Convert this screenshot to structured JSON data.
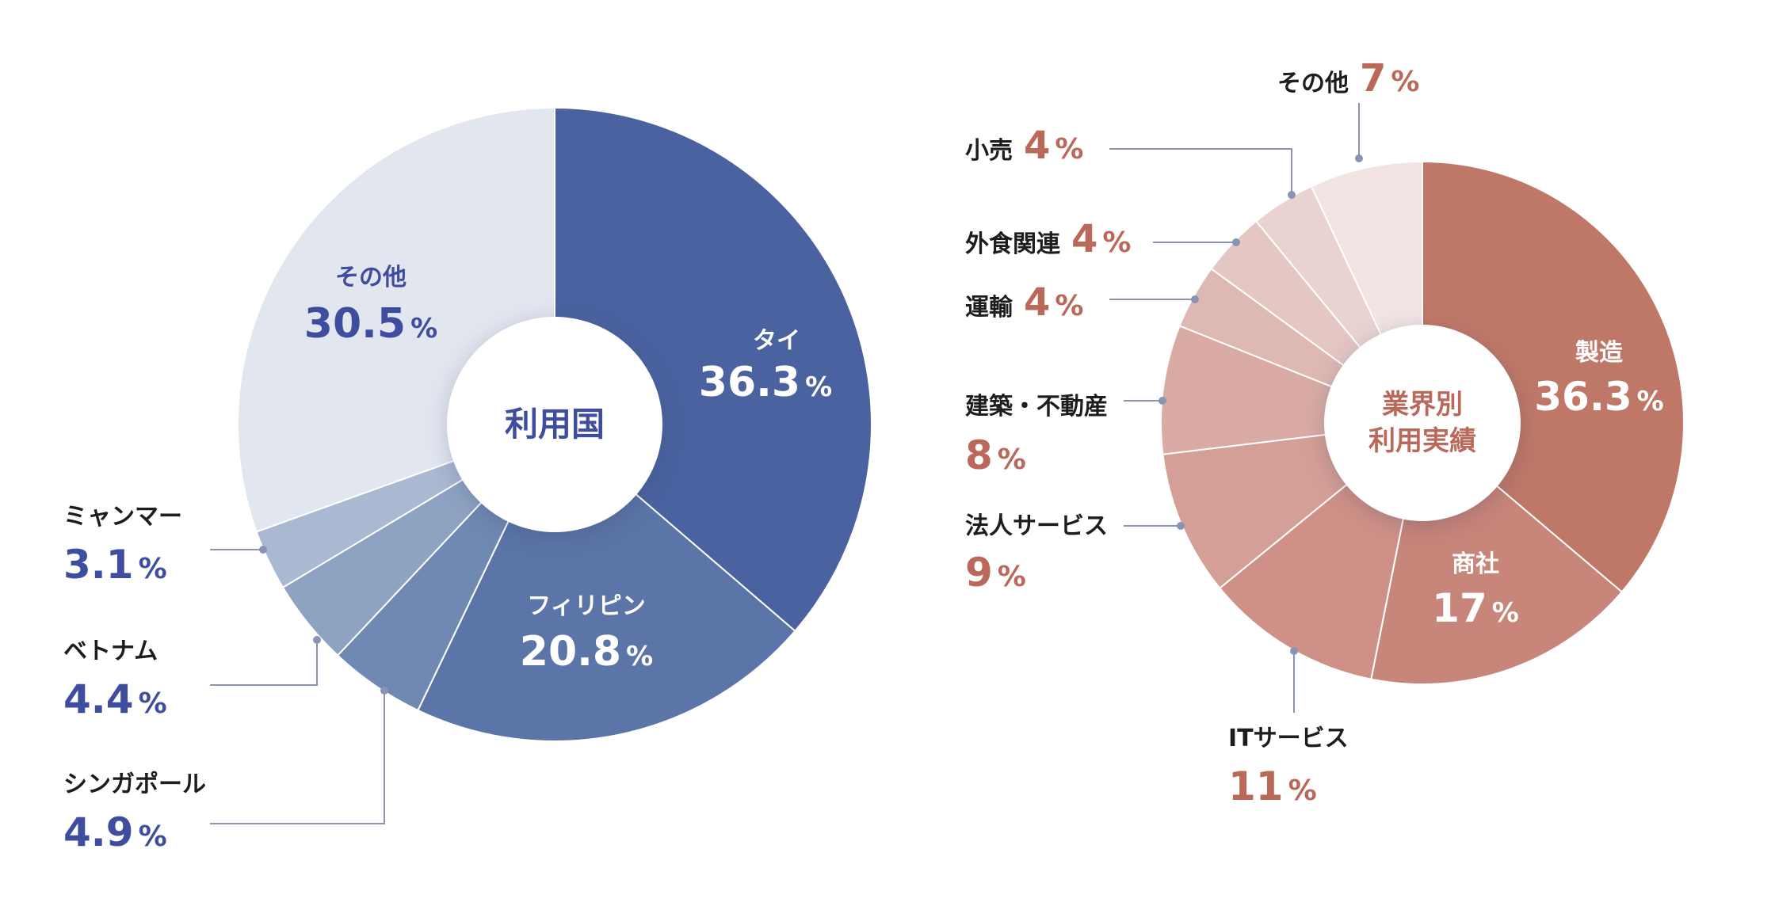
{
  "colors": {
    "blue_text": "#3e4d9e",
    "terracotta_text": "#b9685a",
    "black_text": "#1d1d1d",
    "leader_line_blue": "#8b93b3",
    "leader_line_red": "#8b93b3"
  },
  "chart_data": [
    {
      "type": "pie",
      "title": "利用国",
      "unit": "%",
      "slices": [
        {
          "label": "タイ",
          "value": 36.3,
          "value_text": "36.3",
          "color": "#4a63a0"
        },
        {
          "label": "フィリピン",
          "value": 20.8,
          "value_text": "20.8",
          "color": "#5b75a8"
        },
        {
          "label": "シンガポール",
          "value": 4.9,
          "value_text": "4.9",
          "color": "#7089b3"
        },
        {
          "label": "ベトナム",
          "value": 4.4,
          "value_text": "4.4",
          "color": "#8ea3c2"
        },
        {
          "label": "ミャンマー",
          "value": 3.1,
          "value_text": "3.1",
          "color": "#a9b9d1"
        },
        {
          "label": "その他",
          "value": 30.5,
          "value_text": "30.5",
          "color": "#e2e6ef"
        }
      ]
    },
    {
      "type": "pie",
      "title_lines": [
        "業界別",
        "利用実績"
      ],
      "unit": "%",
      "slices": [
        {
          "label": "製造",
          "value": 36.3,
          "value_text": "36.3",
          "color": "#bf7868"
        },
        {
          "label": "商社",
          "value": 17,
          "value_text": "17",
          "color": "#c8857a"
        },
        {
          "label": "ITサービス",
          "value": 11,
          "value_text": "11",
          "color": "#cf9187"
        },
        {
          "label": "法人サービス",
          "value": 9,
          "value_text": "9",
          "color": "#d49f96"
        },
        {
          "label": "建築・不動産",
          "value": 8,
          "value_text": "8",
          "color": "#d9aba4"
        },
        {
          "label": "運輸",
          "value": 4,
          "value_text": "4",
          "color": "#deb9b3"
        },
        {
          "label": "外食関連",
          "value": 4,
          "value_text": "4",
          "color": "#e4c7c3"
        },
        {
          "label": "小売",
          "value": 4,
          "value_text": "4",
          "color": "#e9d3d0"
        },
        {
          "label": "その他",
          "value": 7,
          "value_text": "7",
          "color": "#f1e4e3"
        }
      ]
    }
  ]
}
